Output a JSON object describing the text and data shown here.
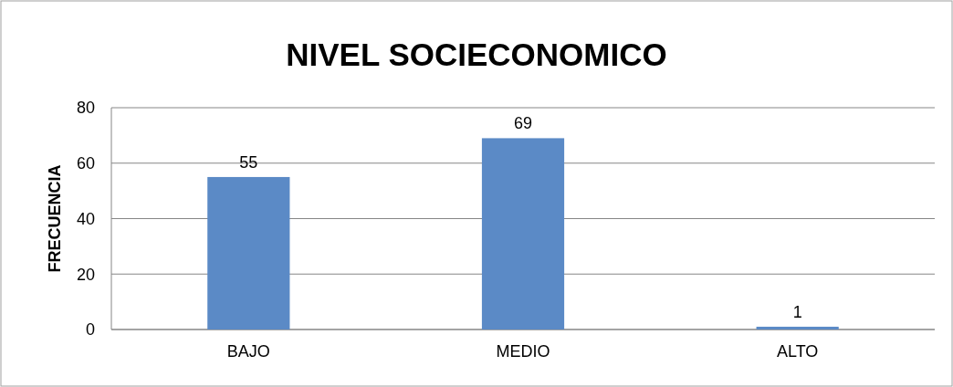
{
  "chart_data": {
    "type": "bar",
    "title": "NIVEL SOCIECONOMICO",
    "ylabel": "FRECUENCIA",
    "categories": [
      "BAJO",
      "MEDIO",
      "ALTO"
    ],
    "values": [
      55,
      69,
      1
    ],
    "color": "#5b8ac6",
    "ylim": [
      0,
      80
    ],
    "yticks": [
      0,
      20,
      40,
      60,
      80
    ],
    "grid": "y",
    "data_labels": true
  }
}
